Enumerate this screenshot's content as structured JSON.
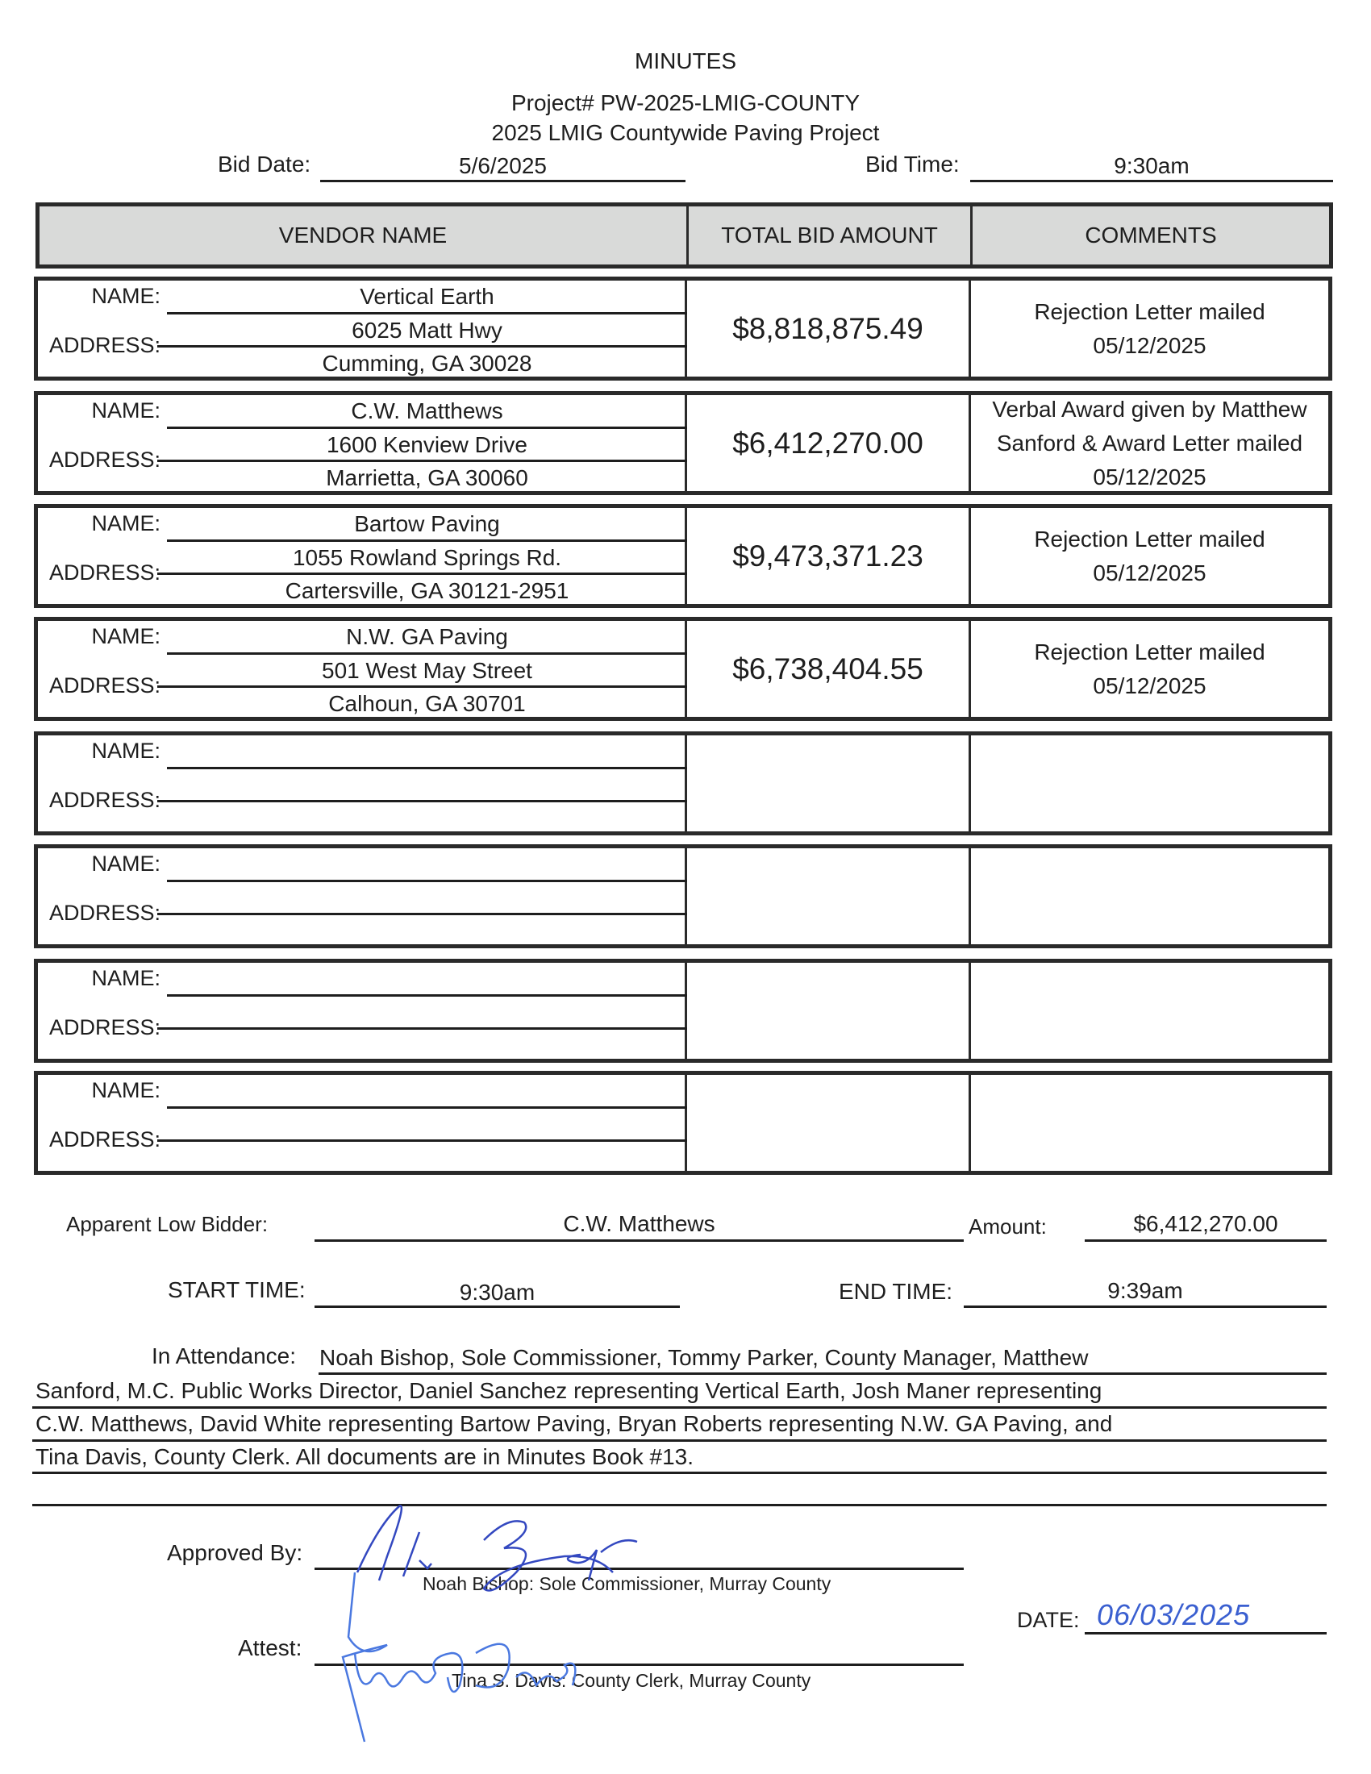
{
  "header": {
    "title": "MINUTES",
    "project": "Project# PW-2025-LMIG-COUNTY",
    "subtitle": "2025 LMIG Countywide Paving Project",
    "bid_date_label": "Bid Date:",
    "bid_date": "5/6/2025",
    "bid_time_label": "Bid Time:",
    "bid_time": "9:30am"
  },
  "table": {
    "headers": [
      "VENDOR NAME",
      "TOTAL BID AMOUNT",
      "COMMENTS"
    ],
    "name_label": "NAME:",
    "address_label": "ADDRESS:",
    "rows": [
      {
        "name": "Vertical Earth",
        "address1": "6025 Matt Hwy",
        "address2": "Cumming, GA 30028",
        "amount": "$8,818,875.49",
        "comment": "Rejection Letter mailed 05/12/2025"
      },
      {
        "name": "C.W. Matthews",
        "address1": "1600 Kenview Drive",
        "address2": "Marrietta, GA 30060",
        "amount": "$6,412,270.00",
        "comment": "Verbal Award given by Matthew Sanford & Award Letter mailed 05/12/2025"
      },
      {
        "name": "Bartow Paving",
        "address1": "1055 Rowland Springs Rd.",
        "address2": "Cartersville, GA 30121-2951",
        "amount": "$9,473,371.23",
        "comment": "Rejection Letter mailed 05/12/2025"
      },
      {
        "name": "N.W. GA Paving",
        "address1": "501 West May Street",
        "address2": "Calhoun, GA 30701",
        "amount": "$6,738,404.55",
        "comment": "Rejection Letter mailed 05/12/2025"
      },
      {
        "name": "",
        "address1": "",
        "address2": "",
        "amount": "",
        "comment": ""
      },
      {
        "name": "",
        "address1": "",
        "address2": "",
        "amount": "",
        "comment": ""
      },
      {
        "name": "",
        "address1": "",
        "address2": "",
        "amount": "",
        "comment": ""
      },
      {
        "name": "",
        "address1": "",
        "address2": "",
        "amount": "",
        "comment": ""
      }
    ]
  },
  "summary": {
    "low_bidder_label": "Apparent Low Bidder:",
    "low_bidder": "C.W. Matthews",
    "amount_label": "Amount:",
    "amount": "$6,412,270.00",
    "start_label": "START TIME:",
    "start": "9:30am",
    "end_label": "END TIME:",
    "end": "9:39am",
    "attendance_label": "In Attendance:",
    "attendance_lines": [
      "Noah Bishop, Sole Commissioner, Tommy Parker, County Manager, Matthew",
      "Sanford, M.C. Public Works Director, Daniel Sanchez representing Vertical Earth, Josh Maner representing",
      "C.W. Matthews, David White representing Bartow Paving, Bryan Roberts representing N.W. GA Paving, and",
      "Tina Davis, County Clerk. All documents are in Minutes Book #13."
    ]
  },
  "signatures": {
    "approved_label": "Approved By:",
    "approved_caption": "Noah Bishop: Sole Commissioner, Murray County",
    "approved_signature": "Noah Bishop",
    "attest_label": "Attest:",
    "attest_caption": "Tina S. Davis: County Clerk, Murray County",
    "attest_signature": "Tina S. Davis",
    "date_label": "DATE:",
    "date": "06/03/2025",
    "ink_color": "#3a5fd0"
  }
}
